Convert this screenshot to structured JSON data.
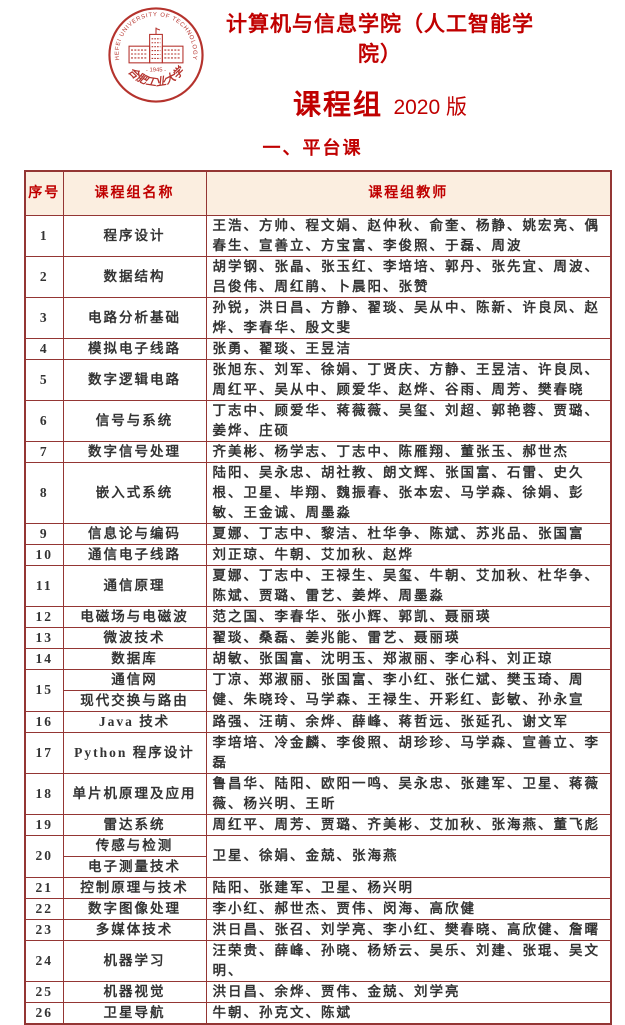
{
  "header": {
    "college": "计算机与信息学院（人工智能学院）",
    "title": "课程组",
    "version": "2020 版",
    "logo": {
      "name": "合肥工业大学校徽",
      "english": "HEFEI UNIVERSITY OF TECHNOLOGY",
      "year": "- 1945 -",
      "calligraphy": "合肥工业大学",
      "color": "#b5332d"
    }
  },
  "section_title": "一、平台课",
  "colors": {
    "accent_red": "#c00000",
    "border_red": "#943634",
    "header_bg": "#fbeee0",
    "body_text": "#333333"
  },
  "table": {
    "columns": [
      "序号",
      "课程组名称",
      "课程组教师"
    ],
    "rows": [
      {
        "no": "1",
        "name": "程序设计",
        "teachers": "王浩、方帅、程文娟、赵仲秋、俞奎、杨静、姚宏亮、偶春生、宣善立、方宝富、李俊照、于磊、周波"
      },
      {
        "no": "2",
        "name": "数据结构",
        "teachers": "胡学钢、张晶、张玉红、李培培、郭丹、张先宜、周波、吕俊伟、周红鹃、卜晨阳、张赞"
      },
      {
        "no": "3",
        "name": "电路分析基础",
        "teachers": "孙锐，洪日昌、方静、翟琰、吴从中、陈新、许良凤、赵烨、李春华、殷文斐"
      },
      {
        "no": "4",
        "name": "模拟电子线路",
        "teachers": "张勇、翟琰、王昱洁"
      },
      {
        "no": "5",
        "name": "数字逻辑电路",
        "teachers": "张旭东、刘军、徐娟、丁贤庆、方静、王昱洁、许良凤、周红平、吴从中、顾爱华、赵烨、谷雨、周芳、樊春晓"
      },
      {
        "no": "6",
        "name": "信号与系统",
        "teachers": "丁志中、顾爱华、蒋薇薇、吴玺、刘超、郭艳蓉、贾璐、姜烨、庄硕"
      },
      {
        "no": "7",
        "name": "数字信号处理",
        "teachers": "齐美彬、杨学志、丁志中、陈雁翔、董张玉、郝世杰"
      },
      {
        "no": "8",
        "name": "嵌入式系统",
        "teachers": "陆阳、吴永忠、胡社教、朗文辉、张国富、石雷、史久根、卫星、毕翔、魏振春、张本宏、马学森、徐娟、彭敏、王金诚、周墨淼"
      },
      {
        "no": "9",
        "name": "信息论与编码",
        "teachers": "夏娜、丁志中、黎洁、杜华争、陈斌、苏兆品、张国富"
      },
      {
        "no": "10",
        "name": "通信电子线路",
        "teachers": "刘正琼、牛朝、艾加秋、赵烨"
      },
      {
        "no": "11",
        "name": "通信原理",
        "teachers": "夏娜、丁志中、王禄生、吴玺、牛朝、艾加秋、杜华争、陈斌、贾璐、雷艺、姜烨、周墨淼"
      },
      {
        "no": "12",
        "name": "电磁场与电磁波",
        "teachers": "范之国、李春华、张小辉、郭凯、聂丽瑛"
      },
      {
        "no": "13",
        "name": "微波技术",
        "teachers": "翟琰、桑磊、姜兆能、雷艺、聂丽瑛"
      },
      {
        "no": "14",
        "name": "数据库",
        "teachers": "胡敏、张国富、沈明玉、郑淑丽、李心科、刘正琼"
      },
      {
        "no": "15",
        "names": [
          "通信网",
          "现代交换与路由"
        ],
        "teachers": "丁凉、郑淑丽、张国富、李小红、张仁斌、樊玉琦、周健、朱晓玲、马学森、王禄生、开彩红、彭敏、孙永宣"
      },
      {
        "no": "16",
        "name": "Java 技术",
        "teachers": "路强、汪萌、余烨、薛峰、蒋哲远、张延孔、谢文军"
      },
      {
        "no": "17",
        "name": "Python 程序设计",
        "teachers": "李培培、冷金麟、李俊照、胡珍珍、马学森、宣善立、李磊"
      },
      {
        "no": "18",
        "name": "单片机原理及应用",
        "teachers": "鲁昌华、陆阳、欧阳一鸣、吴永忠、张建军、卫星、蒋薇薇、杨兴明、王昕"
      },
      {
        "no": "19",
        "name": "雷达系统",
        "teachers": "周红平、周芳、贾璐、齐美彬、艾加秋、张海燕、董飞彪"
      },
      {
        "no": "20",
        "names": [
          "传感与检测",
          "电子测量技术"
        ],
        "teachers": "卫星、徐娟、金兢、张海燕"
      },
      {
        "no": "21",
        "name": "控制原理与技术",
        "teachers": "陆阳、张建军、卫星、杨兴明"
      },
      {
        "no": "22",
        "name": "数字图像处理",
        "teachers": "李小红、郝世杰、贾伟、闵海、高欣健"
      },
      {
        "no": "23",
        "name": "多媒体技术",
        "teachers": "洪日昌、张召、刘学亮、李小红、樊春晓、高欣健、詹曙"
      },
      {
        "no": "24",
        "name": "机器学习",
        "teachers": "汪荣贵、薛峰、孙晓、杨矫云、吴乐、刘建、张琨、吴文明、"
      },
      {
        "no": "25",
        "name": "机器视觉",
        "teachers": "洪日昌、余烨、贾伟、金兢、刘学亮"
      },
      {
        "no": "26",
        "name": "卫星导航",
        "teachers": "牛朝、孙克文、陈斌"
      }
    ]
  }
}
